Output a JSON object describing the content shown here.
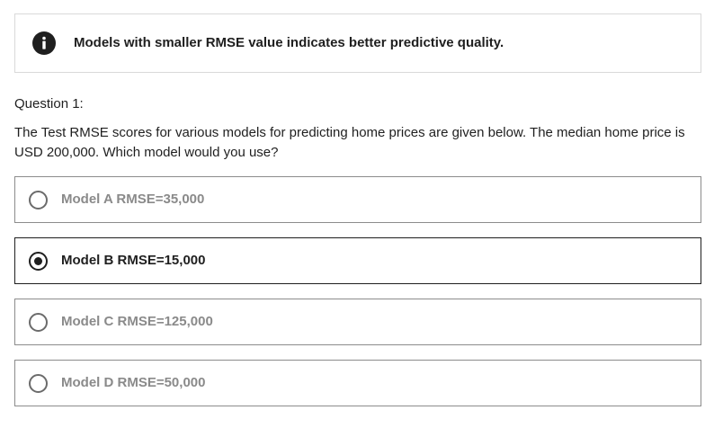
{
  "info": {
    "icon": "info-icon",
    "text": "Models with smaller RMSE value indicates better predictive quality."
  },
  "question": {
    "label": "Question 1:",
    "text": "The Test RMSE scores for various models for predicting home prices are given below.  The median home price is USD 200,000.  Which model would you use?"
  },
  "options": [
    {
      "label": "Model A RMSE=35,000",
      "selected": false
    },
    {
      "label": "Model B RMSE=15,000",
      "selected": true
    },
    {
      "label": "Model C RMSE=125,000",
      "selected": false
    },
    {
      "label": "Model D RMSE=50,000",
      "selected": false
    }
  ],
  "colors": {
    "text": "#1f1f1f",
    "unselected_text": "#8a8a8a",
    "border": "#8c8c8c",
    "info_border": "#d9d9d9"
  }
}
